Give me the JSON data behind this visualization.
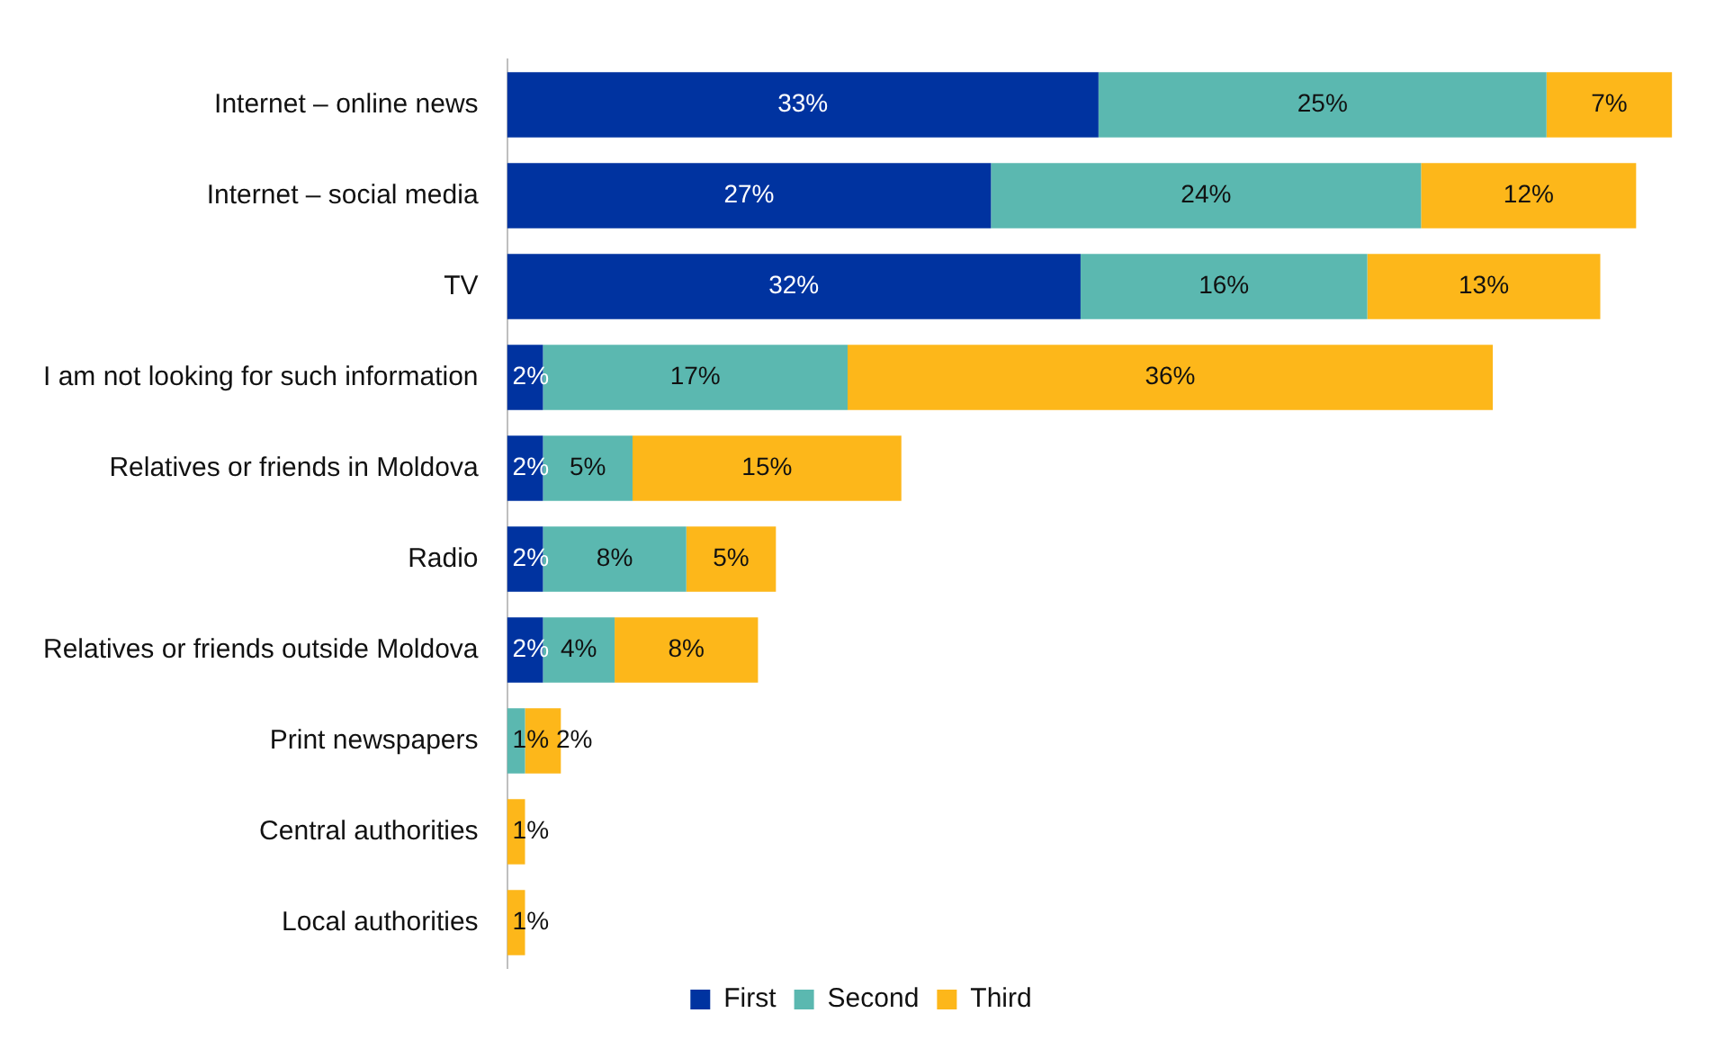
{
  "chart_data": {
    "type": "bar",
    "orientation": "horizontal",
    "stacked": true,
    "legend": "bottom",
    "grid": false,
    "categories": [
      "Internet – online news",
      "Internet – social media",
      "TV",
      "I am not looking for such information",
      "Relatives or friends in Moldova",
      "Radio",
      "Relatives or friends outside Moldova",
      "Print newspapers",
      "Central authorities",
      "Local authorities"
    ],
    "series": [
      {
        "name": "First",
        "color": "#0033a0",
        "values": [
          33,
          27,
          32,
          2,
          2,
          2,
          2,
          null,
          null,
          null
        ],
        "value_labels": [
          "33%",
          "27%",
          "32%",
          "2%",
          "2%",
          "2%",
          "2%",
          null,
          null,
          null
        ]
      },
      {
        "name": "Second",
        "color": "#5bb8b0",
        "values": [
          25,
          24,
          16,
          17,
          5,
          8,
          4,
          1,
          null,
          null
        ],
        "value_labels": [
          "25%",
          "24%",
          "16%",
          "17%",
          "5%",
          "8%",
          "4%",
          "1%",
          null,
          null
        ]
      },
      {
        "name": "Third",
        "color": "#fdb71a",
        "values": [
          7,
          12,
          13,
          36,
          15,
          5,
          8,
          2,
          1,
          1
        ],
        "value_labels": [
          "7%",
          "12%",
          "13%",
          "36%",
          "15%",
          "5%",
          "8%",
          "2%",
          "1%",
          "1%"
        ]
      }
    ]
  }
}
